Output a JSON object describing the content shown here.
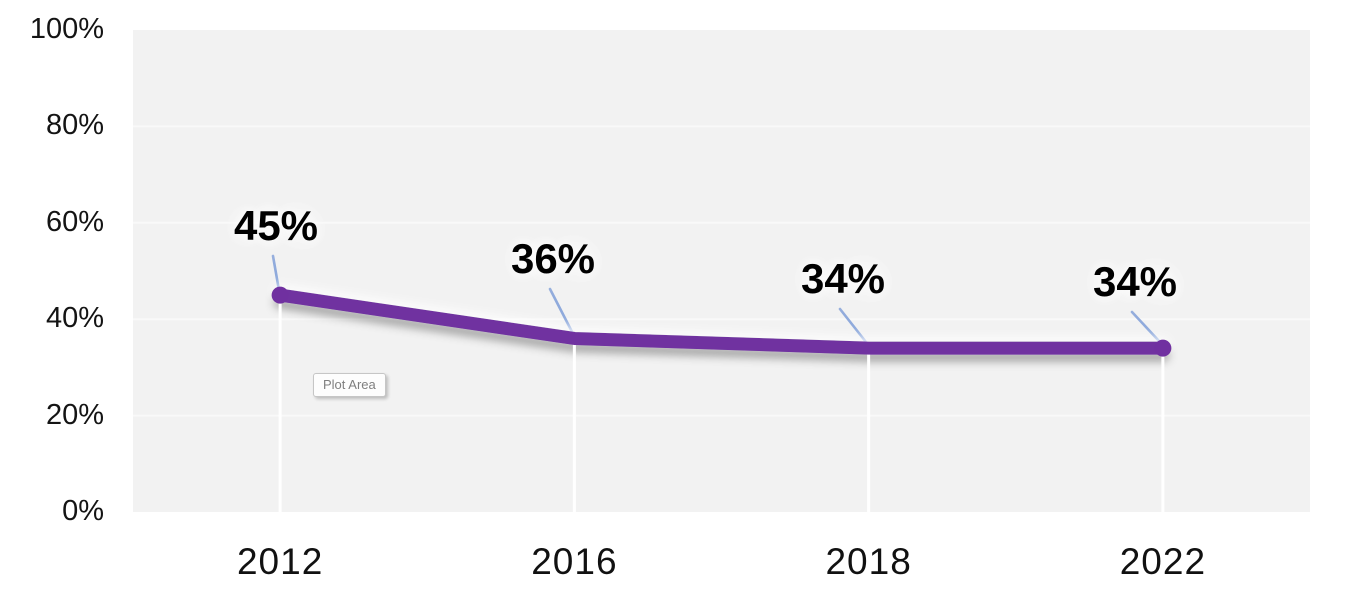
{
  "chart": {
    "tooltip_label": "Plot Area"
  },
  "chart_data": {
    "type": "line",
    "title": "",
    "categories": [
      "2012",
      "2016",
      "2018",
      "2022"
    ],
    "series": [
      {
        "name": "",
        "values": [
          45,
          36,
          34,
          34
        ]
      }
    ],
    "data_labels": [
      "45%",
      "36%",
      "34%",
      "34%"
    ],
    "y_tick_values": [
      0,
      20,
      40,
      60,
      80,
      100
    ],
    "y_tick_labels": [
      "0%",
      "20%",
      "40%",
      "60%",
      "80%",
      "100%"
    ],
    "ylim": [
      0,
      100
    ],
    "grid": true,
    "legend": "none",
    "colors": {
      "line": "#7030A0",
      "leader_line": "#8FAADC",
      "plot_background": "#F2F2F2",
      "gridline": "#FAFAFA",
      "drop_line": "#FFFFFF",
      "data_label_text": "#000000",
      "axis_text": "#141414",
      "tooltip_text": "#7F7F7F"
    }
  }
}
